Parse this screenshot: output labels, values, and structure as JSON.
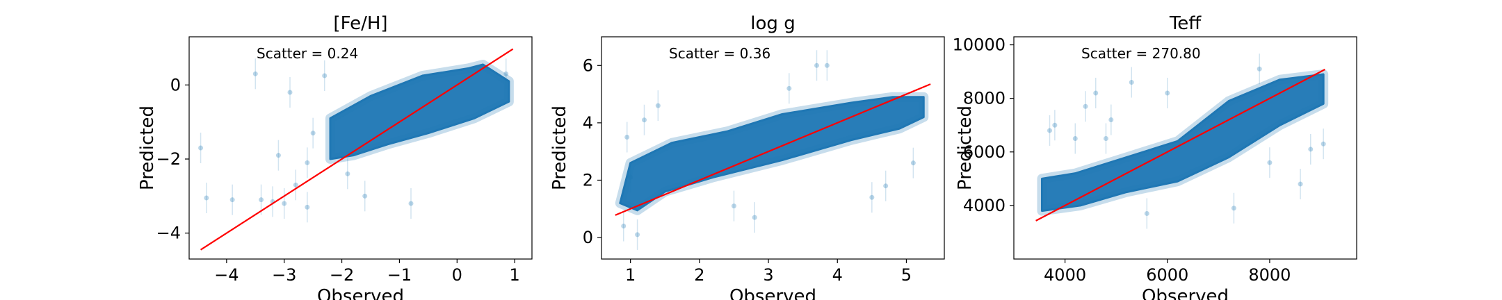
{
  "chart_data": [
    {
      "type": "scatter",
      "title": "[Fe/H]",
      "xlabel": "Observed",
      "ylabel": "Predicted",
      "xlim": [
        -4.65,
        1.3
      ],
      "ylim": [
        -4.7,
        1.3
      ],
      "xticks": [
        -4,
        -3,
        -2,
        -1,
        0,
        1
      ],
      "yticks": [
        -4,
        -2,
        0
      ],
      "annotation": "Scatter = 0.24",
      "fit_line": {
        "x": [
          -4.45,
          0.97
        ],
        "y": [
          -4.45,
          0.97
        ],
        "color": "#ff0000"
      },
      "point_color": "#1f77b4",
      "cloud": [
        [
          -2.2,
          -2.0
        ],
        [
          -2.2,
          -0.9
        ],
        [
          -1.5,
          -0.3
        ],
        [
          -0.6,
          0.25
        ],
        [
          0.2,
          0.45
        ],
        [
          0.45,
          0.55
        ],
        [
          0.9,
          0.1
        ],
        [
          0.9,
          -0.45
        ],
        [
          0.3,
          -0.9
        ],
        [
          -0.5,
          -1.3
        ],
        [
          -1.2,
          -1.6
        ],
        [
          -1.8,
          -1.9
        ]
      ],
      "points": [
        [
          -4.45,
          -1.7
        ],
        [
          -4.35,
          -3.05
        ],
        [
          -3.5,
          0.3
        ],
        [
          -3.4,
          -3.1
        ],
        [
          -3.0,
          -3.2
        ],
        [
          -3.9,
          -3.1
        ],
        [
          -3.2,
          -3.15
        ],
        [
          -2.6,
          -3.3
        ],
        [
          -1.6,
          -3.0
        ],
        [
          -0.8,
          -3.2
        ],
        [
          -2.8,
          -2.7
        ],
        [
          -2.5,
          -1.3
        ],
        [
          -3.1,
          -1.9
        ],
        [
          -2.9,
          -0.2
        ],
        [
          -2.3,
          0.25
        ],
        [
          0.85,
          0.3
        ],
        [
          -1.9,
          -2.4
        ],
        [
          -2.6,
          -2.1
        ]
      ]
    },
    {
      "type": "scatter",
      "title": "log g",
      "xlabel": "Observed",
      "ylabel": "Predicted",
      "xlim": [
        0.58,
        5.55
      ],
      "ylim": [
        -0.75,
        7.0
      ],
      "xticks": [
        1,
        2,
        3,
        4,
        5
      ],
      "yticks": [
        0,
        2,
        4,
        6
      ],
      "annotation": "Scatter = 0.36",
      "fit_line": {
        "x": [
          0.78,
          5.35
        ],
        "y": [
          0.78,
          5.35
        ],
        "color": "#ff0000"
      },
      "point_color": "#1f77b4",
      "cloud": [
        [
          0.85,
          1.2
        ],
        [
          1.0,
          2.6
        ],
        [
          1.6,
          3.3
        ],
        [
          2.4,
          3.7
        ],
        [
          3.2,
          4.3
        ],
        [
          4.2,
          4.7
        ],
        [
          4.8,
          4.9
        ],
        [
          5.25,
          4.9
        ],
        [
          5.25,
          4.2
        ],
        [
          4.9,
          3.8
        ],
        [
          4.2,
          3.4
        ],
        [
          3.2,
          2.7
        ],
        [
          2.2,
          2.1
        ],
        [
          1.5,
          1.6
        ],
        [
          1.1,
          0.95
        ]
      ],
      "points": [
        [
          0.9,
          0.4
        ],
        [
          1.0,
          2.1
        ],
        [
          0.95,
          3.5
        ],
        [
          1.2,
          4.1
        ],
        [
          1.1,
          0.1
        ],
        [
          3.7,
          6.0
        ],
        [
          3.85,
          6.0
        ],
        [
          3.3,
          5.2
        ],
        [
          4.5,
          1.4
        ],
        [
          4.7,
          1.8
        ],
        [
          5.1,
          2.6
        ],
        [
          2.5,
          1.1
        ],
        [
          1.4,
          4.6
        ],
        [
          2.8,
          0.7
        ]
      ]
    },
    {
      "type": "scatter",
      "title": "Teff",
      "xlabel": "Observed",
      "ylabel": "Predicted",
      "xlim": [
        3000,
        9700
      ],
      "ylim": [
        2000,
        10300
      ],
      "xticks": [
        4000,
        6000,
        8000
      ],
      "yticks": [
        4000,
        6000,
        8000,
        10000
      ],
      "annotation": "Scatter = 270.80",
      "fit_line": {
        "x": [
          3430,
          9080
        ],
        "y": [
          3430,
          9080
        ],
        "color": "#ff0000"
      },
      "point_color": "#1f77b4",
      "cloud": [
        [
          3550,
          3800
        ],
        [
          3550,
          5000
        ],
        [
          4200,
          5200
        ],
        [
          5200,
          5800
        ],
        [
          6200,
          6400
        ],
        [
          7200,
          7900
        ],
        [
          8200,
          8700
        ],
        [
          9050,
          8900
        ],
        [
          9050,
          7800
        ],
        [
          8200,
          7000
        ],
        [
          7200,
          5800
        ],
        [
          6200,
          4900
        ],
        [
          5200,
          4500
        ],
        [
          4300,
          4000
        ]
      ],
      "points": [
        [
          4600,
          8200
        ],
        [
          4400,
          7700
        ],
        [
          4900,
          7200
        ],
        [
          5300,
          8600
        ],
        [
          6000,
          8200
        ],
        [
          3700,
          6800
        ],
        [
          8800,
          6100
        ],
        [
          9050,
          6300
        ],
        [
          8000,
          5600
        ],
        [
          8600,
          4800
        ],
        [
          7300,
          3900
        ],
        [
          5600,
          3700
        ],
        [
          3800,
          7000
        ],
        [
          4200,
          6500
        ],
        [
          4800,
          6500
        ],
        [
          7800,
          9100
        ]
      ]
    }
  ]
}
